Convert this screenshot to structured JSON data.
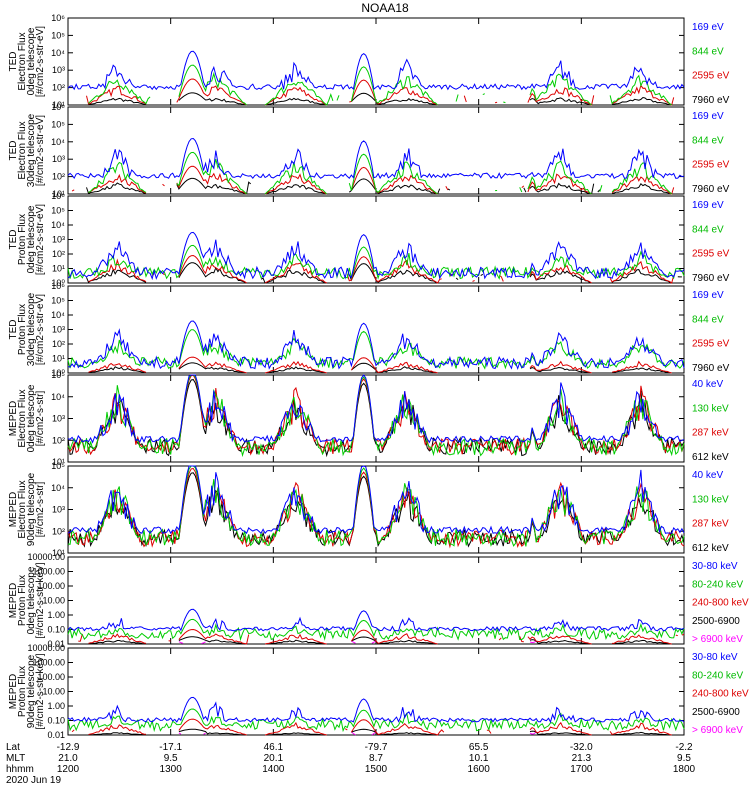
{
  "title": "NOAA18",
  "date_label": "2020 Jun 19",
  "colors": {
    "black": "#000000",
    "red": "#dd0000",
    "green": "#00cc00",
    "blue": "#0000ff",
    "magenta": "#ff00ff"
  },
  "axis_rows": {
    "labels": [
      "Lat",
      "MLT",
      "hhmm"
    ],
    "ticks": [
      {
        "t": "1200",
        "lat": "-12.9",
        "mlt": "21.0",
        "hhmm": "1200"
      },
      {
        "t": "1300",
        "lat": "-17.1",
        "mlt": "9.5",
        "hhmm": "1300"
      },
      {
        "t": "1400",
        "lat": "46.1",
        "mlt": "20.1",
        "hhmm": "1400"
      },
      {
        "t": "1500",
        "lat": "-79.7",
        "mlt": "8.7",
        "hhmm": "1500"
      },
      {
        "t": "1600",
        "lat": "65.5",
        "mlt": "10.1",
        "hhmm": "1600"
      },
      {
        "t": "1700",
        "lat": "-32.0",
        "mlt": "21.3",
        "hhmm": "1700"
      },
      {
        "t": "1800",
        "lat": "-2.2",
        "mlt": "9.5",
        "hhmm": "1800"
      }
    ]
  },
  "chart_data": [
    {
      "type": "line",
      "ylabel": [
        "TED",
        "Electron Flux",
        "0deg telescope",
        "[#/cm2-s-str-eV]"
      ],
      "yscale": "log",
      "ylim": [
        10,
        1000000
      ],
      "yticks": [
        "10¹",
        "10²",
        "10³",
        "10⁴",
        "10⁵",
        "10⁶"
      ],
      "xlim": [
        "1200",
        "1800"
      ],
      "series": [
        {
          "name": "7960 eV",
          "color": "#000000",
          "base": "none",
          "peak": 0.5
        },
        {
          "name": "2595 eV",
          "color": "#dd0000",
          "base": "sparse",
          "peak": 1.3
        },
        {
          "name": "844 eV",
          "color": "#00cc00",
          "base": "sparse",
          "peak": 2.1
        },
        {
          "name": "169 eV",
          "color": "#0000ff",
          "base": "line",
          "peak": 2.9
        }
      ]
    },
    {
      "type": "line",
      "ylabel": [
        "TED",
        "Electron Flux",
        "30deg telescope",
        "[#/cm2-s-str-eV]"
      ],
      "yscale": "log",
      "ylim": [
        10,
        1000000
      ],
      "yticks": [
        "10¹",
        "10²",
        "10³",
        "10⁴",
        "10⁵",
        "10⁶"
      ],
      "xlim": [
        "1200",
        "1800"
      ],
      "series": [
        {
          "name": "7960 eV",
          "color": "#000000",
          "base": "sparse",
          "peak": 0.7
        },
        {
          "name": "2595 eV",
          "color": "#dd0000",
          "base": "sparse",
          "peak": 1.4
        },
        {
          "name": "844 eV",
          "color": "#00cc00",
          "base": "sparse",
          "peak": 2.2
        },
        {
          "name": "169 eV",
          "color": "#0000ff",
          "base": "line",
          "peak": 3.0
        }
      ]
    },
    {
      "type": "line",
      "ylabel": [
        "TED",
        "Proton Flux",
        "0deg telescope",
        "[#/cm2-s-str-eV]"
      ],
      "yscale": "log",
      "ylim": [
        1,
        1000000
      ],
      "yticks": [
        "10⁰",
        "10¹",
        "10²",
        "10³",
        "10⁴",
        "10⁵",
        "10⁶"
      ],
      "xlim": [
        "1200",
        "1800"
      ],
      "series": [
        {
          "name": "7960 eV",
          "color": "#000000",
          "base": "sparse",
          "peak": 1.2
        },
        {
          "name": "2595 eV",
          "color": "#dd0000",
          "base": "sparse",
          "peak": 1.7
        },
        {
          "name": "844 eV",
          "color": "#00cc00",
          "base": "dense",
          "peak": 2.4
        },
        {
          "name": "169 eV",
          "color": "#0000ff",
          "base": "dense",
          "peak": 3.3
        }
      ]
    },
    {
      "type": "line",
      "ylabel": [
        "TED",
        "Proton Flux",
        "30deg telescope",
        "[#/cm2-s-str-eV]"
      ],
      "yscale": "log",
      "ylim": [
        1,
        1000000
      ],
      "yticks": [
        "10⁰",
        "10¹",
        "10²",
        "10³",
        "10⁴",
        "10⁵",
        "10⁶"
      ],
      "xlim": [
        "1200",
        "1800"
      ],
      "series": [
        {
          "name": "7960 eV",
          "color": "#000000",
          "base": "none",
          "peak": 0.5
        },
        {
          "name": "2595 eV",
          "color": "#dd0000",
          "base": "none",
          "peak": 0.9
        },
        {
          "name": "844 eV",
          "color": "#00cc00",
          "base": "dense",
          "peak": 2.8
        },
        {
          "name": "169 eV",
          "color": "#0000ff",
          "base": "dense",
          "peak": 3.4
        }
      ]
    },
    {
      "type": "line",
      "ylabel": [
        "MEPED",
        "Electron Flux",
        "0deg telescope",
        "[#/cm2-s-str]"
      ],
      "yscale": "log",
      "ylim": [
        10,
        100000
      ],
      "yticks": [
        "10¹",
        "10²",
        "10³",
        "10⁴",
        "10⁵"
      ],
      "xlim": [
        "1200",
        "1800"
      ],
      "series": [
        {
          "name": "612 keV",
          "color": "#000000",
          "base": "dense",
          "peak": 3.6
        },
        {
          "name": "287 keV",
          "color": "#dd0000",
          "base": "dense",
          "peak": 3.8
        },
        {
          "name": "130 keV",
          "color": "#00cc00",
          "base": "dense",
          "peak": 3.9
        },
        {
          "name": "40 keV",
          "color": "#0000ff",
          "base": "line",
          "peak": 4.0
        }
      ]
    },
    {
      "type": "line",
      "ylabel": [
        "MEPED",
        "Electron Flux",
        "90deg telescope",
        "[#/cm2-s-str]"
      ],
      "yscale": "log",
      "ylim": [
        10,
        100000
      ],
      "yticks": [
        "10¹",
        "10²",
        "10³",
        "10⁴",
        "10⁵"
      ],
      "xlim": [
        "1200",
        "1800"
      ],
      "series": [
        {
          "name": "612 keV",
          "color": "#000000",
          "base": "dense",
          "peak": 3.5
        },
        {
          "name": "287 keV",
          "color": "#dd0000",
          "base": "dense",
          "peak": 3.7
        },
        {
          "name": "130 keV",
          "color": "#00cc00",
          "base": "dense",
          "peak": 3.9
        },
        {
          "name": "40 keV",
          "color": "#0000ff",
          "base": "line",
          "peak": 4.1
        }
      ]
    },
    {
      "type": "line",
      "ylabel": [
        "MEPED",
        "Proton Flux",
        "0deg telescope",
        "[#/cm2-s-str-keV]"
      ],
      "yscale": "log",
      "ylim": [
        0.01,
        10000
      ],
      "yticks": [
        "0.01",
        "0.10",
        "1.00",
        "10.00",
        "100.00",
        "1000.00",
        "10000.00"
      ],
      "xlim": [
        "1200",
        "1800"
      ],
      "series": [
        {
          "name": "> 6900 keV",
          "color": "#ff00ff",
          "base": "none",
          "peak": -0.3
        },
        {
          "name": "2500-6900",
          "color": "#000000",
          "base": "none",
          "peak": 0.3
        },
        {
          "name": "240-800 keV",
          "color": "#dd0000",
          "base": "sparse",
          "peak": 0.8
        },
        {
          "name": "80-240 keV",
          "color": "#00cc00",
          "base": "dense",
          "peak": 1.5
        },
        {
          "name": "30-80 keV",
          "color": "#0000ff",
          "base": "line",
          "peak": 2.2
        }
      ]
    },
    {
      "type": "line",
      "ylabel": [
        "MEPED",
        "Proton Flux",
        "90deg telescope",
        "[#/cm2-s-str-keV]"
      ],
      "yscale": "log",
      "ylim": [
        0.01,
        10000
      ],
      "yticks": [
        "0.01",
        "0.10",
        "1.00",
        "10.00",
        "100.00",
        "1000.00",
        "10000.00"
      ],
      "xlim": [
        "1200",
        "1800"
      ],
      "series": [
        {
          "name": "> 6900 keV",
          "color": "#ff00ff",
          "base": "none",
          "peak": -0.4
        },
        {
          "name": "2500-6900",
          "color": "#000000",
          "base": "none",
          "peak": 0.2
        },
        {
          "name": "240-800 keV",
          "color": "#dd0000",
          "base": "sparse",
          "peak": 0.9
        },
        {
          "name": "80-240 keV",
          "color": "#00cc00",
          "base": "dense",
          "peak": 1.6
        },
        {
          "name": "30-80 keV",
          "color": "#0000ff",
          "base": "line",
          "peak": 2.4
        }
      ]
    }
  ]
}
